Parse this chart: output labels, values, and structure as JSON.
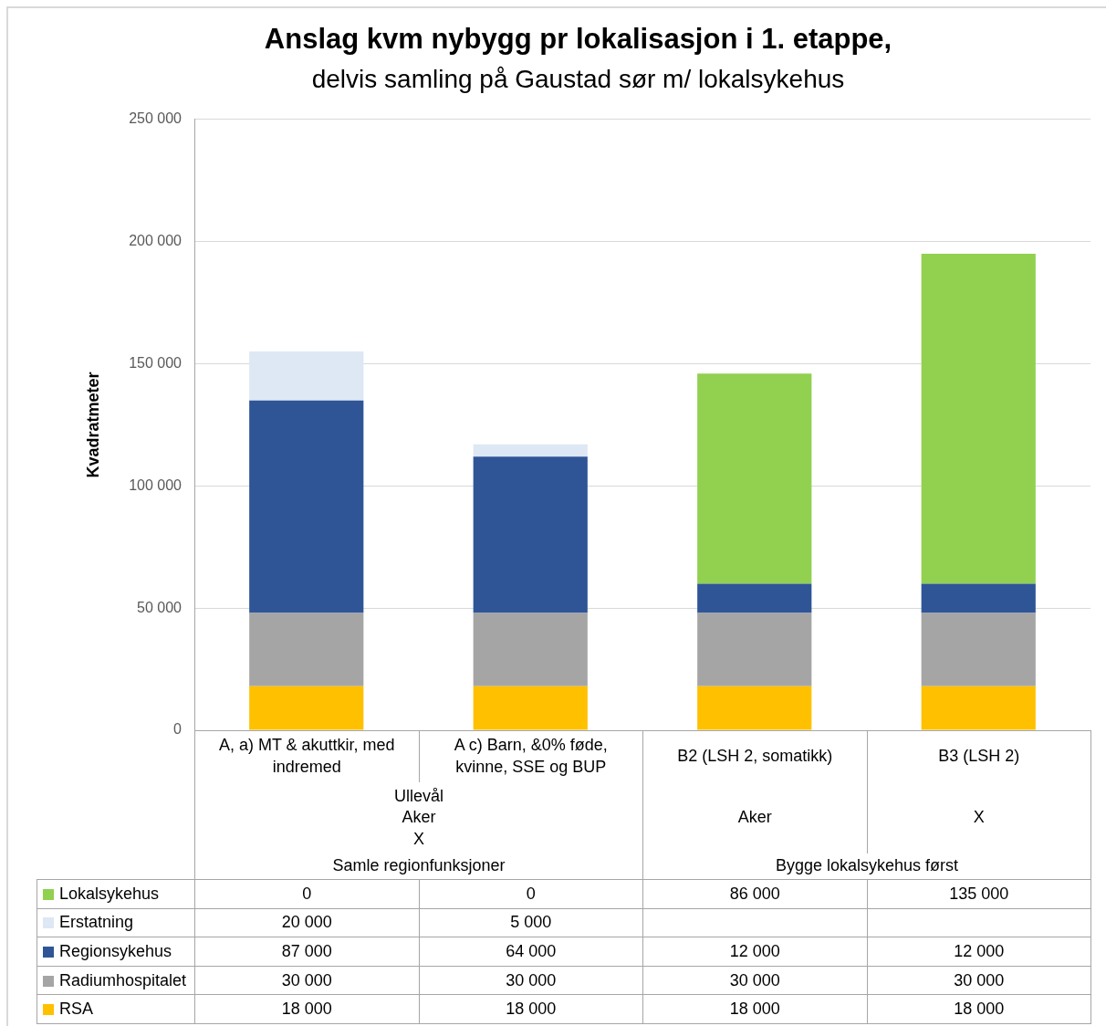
{
  "chart_data": {
    "type": "bar",
    "title": "Anslag kvm nybygg pr lokalisasjon i 1. etappe,",
    "subtitle": "delvis samling på Gaustad sør m/ lokalsykehus",
    "ylabel": "Kvadratmeter",
    "categories": [
      "A, a) MT & akuttkir, med indremed",
      "A c) Barn, &0% føde, kvinne, SSE og BUP",
      "B2 (LSH 2, somatikk)",
      "B3 (LSH 2)"
    ],
    "annotations": [
      "Ullevål\nAker\nX",
      "Aker",
      "X",
      "Samle regionfunksjoner",
      "Bygge lokalsykehus først"
    ],
    "stacked": true,
    "series": [
      {
        "name": "RSA",
        "color": "#ffc000",
        "values": [
          18000,
          18000,
          18000,
          18000
        ],
        "value_labels": [
          "18 000",
          "18 000",
          "18 000",
          "18 000"
        ]
      },
      {
        "name": "Radiumhospitalet",
        "color": "#a5a5a5",
        "values": [
          30000,
          30000,
          30000,
          30000
        ],
        "value_labels": [
          "30 000",
          "30 000",
          "30 000",
          "30 000"
        ]
      },
      {
        "name": "Regionsykehus",
        "color": "#2f5597",
        "values": [
          87000,
          64000,
          12000,
          12000
        ],
        "value_labels": [
          "87 000",
          "64 000",
          "12 000",
          "12 000"
        ]
      },
      {
        "name": "Erstatning",
        "color": "#dee8f4",
        "values": [
          20000,
          5000,
          null,
          null
        ],
        "value_labels": [
          "20 000",
          "5 000",
          null,
          null
        ]
      },
      {
        "name": "Lokalsykehus",
        "color": "#92d050",
        "values": [
          0,
          0,
          86000,
          135000
        ],
        "value_labels": [
          "0",
          "0",
          "86 000",
          "135 000"
        ]
      }
    ],
    "ylim": [
      0,
      250000
    ],
    "yticks": [
      0,
      {
        "value": 50000,
        "label": "50 000"
      },
      {
        "value": 100000,
        "label": "100 000"
      },
      {
        "value": 150000,
        "label": "150 000"
      },
      {
        "value": 200000,
        "label": "200 000"
      },
      {
        "value": 250000,
        "label": "250 000"
      }
    ],
    "grid": "y",
    "legend": "bottom"
  }
}
